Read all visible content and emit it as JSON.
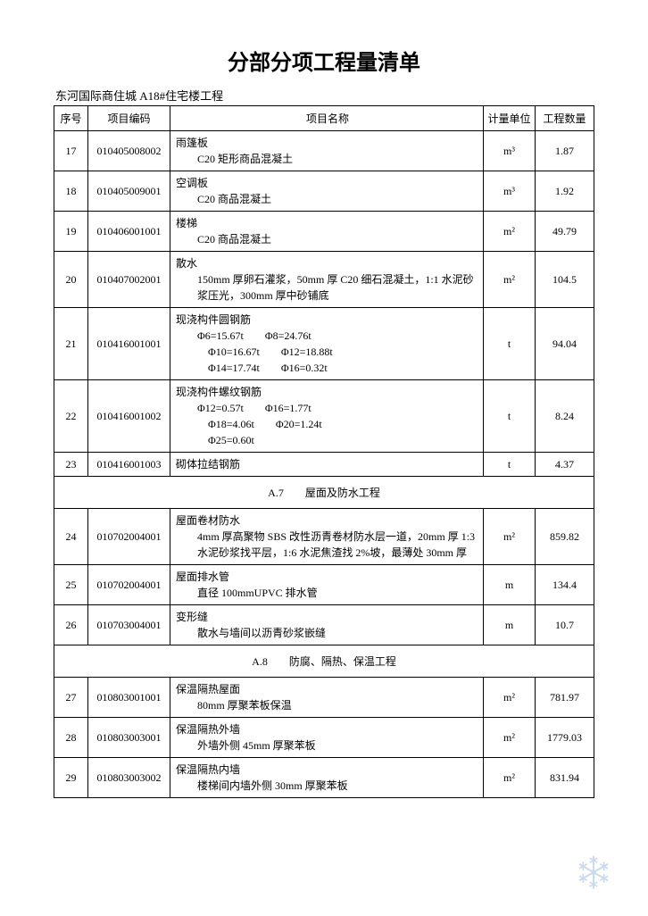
{
  "title": "分部分项工程量清单",
  "subtitle": "东河国际商住城 A18#住宅楼工程",
  "headers": {
    "seq": "序号",
    "code": "项目编码",
    "name": "项目名称",
    "unit": "计量单位",
    "qty": "工程数量"
  },
  "rows": [
    {
      "seq": "17",
      "code": "010405008002",
      "name_title": "雨篷板",
      "name_detail": "C20 矩形商品混凝土",
      "unit": "m³",
      "qty": "1.87"
    },
    {
      "seq": "18",
      "code": "010405009001",
      "name_title": "空调板",
      "name_detail": "C20 商品混凝土",
      "unit": "m³",
      "qty": "1.92"
    },
    {
      "seq": "19",
      "code": "010406001001",
      "name_title": "楼梯",
      "name_detail": "C20 商品混凝土",
      "unit": "m²",
      "qty": "49.79"
    },
    {
      "seq": "20",
      "code": "010407002001",
      "name_title": "散水",
      "name_detail": "150mm 厚卵石灌浆，50mm 厚 C20 细石混凝土，1:1 水泥砂浆压光，300mm 厚中砂铺底",
      "unit": "m²",
      "qty": "104.5"
    },
    {
      "seq": "21",
      "code": "010416001001",
      "name_title": "现浇构件圆钢筋",
      "name_detail": "Φ6=15.67t　　Φ8=24.76t\n　Φ10=16.67t　　Φ12=18.88t\n　Φ14=17.74t　　Φ16=0.32t",
      "unit": "t",
      "qty": "94.04"
    },
    {
      "seq": "22",
      "code": "010416001002",
      "name_title": "现浇构件螺纹钢筋",
      "name_detail": "Φ12=0.57t　　Φ16=1.77t\n　Φ18=4.06t　　Φ20=1.24t\n　Φ25=0.60t",
      "unit": "t",
      "qty": "8.24"
    },
    {
      "seq": "23",
      "code": "010416001003",
      "name_title": "砌体拉结钢筋",
      "name_detail": "",
      "unit": "t",
      "qty": "4.37"
    }
  ],
  "section1": "A.7　　屋面及防水工程",
  "rows2": [
    {
      "seq": "24",
      "code": "010702004001",
      "name_title": "屋面卷材防水",
      "name_detail": "4mm 厚高聚物 SBS 改性沥青卷材防水层一道，20mm 厚 1:3 水泥砂浆找平层，1:6 水泥焦渣找 2%坡，最薄处 30mm 厚",
      "unit": "m²",
      "qty": "859.82"
    },
    {
      "seq": "25",
      "code": "010702004001",
      "name_title": "屋面排水管",
      "name_detail": "直径 100mmUPVC 排水管",
      "unit": "m",
      "qty": "134.4"
    },
    {
      "seq": "26",
      "code": "010703004001",
      "name_title": "变形缝",
      "name_detail": "散水与墙间以沥青砂浆嵌缝",
      "unit": "m",
      "qty": "10.7"
    }
  ],
  "section2": "A.8　　防腐、隔热、保温工程",
  "rows3": [
    {
      "seq": "27",
      "code": "010803001001",
      "name_title": "保温隔热屋面",
      "name_detail": "80mm 厚聚苯板保温",
      "unit": "m²",
      "qty": "781.97"
    },
    {
      "seq": "28",
      "code": "010803003001",
      "name_title": "保温隔热外墙",
      "name_detail": "外墙外侧 45mm 厚聚苯板",
      "unit": "m²",
      "qty": "1779.03"
    },
    {
      "seq": "29",
      "code": "010803003002",
      "name_title": "保温隔热内墙",
      "name_detail": "楼梯间内墙外侧 30mm 厚聚苯板",
      "unit": "m²",
      "qty": "831.94"
    }
  ]
}
